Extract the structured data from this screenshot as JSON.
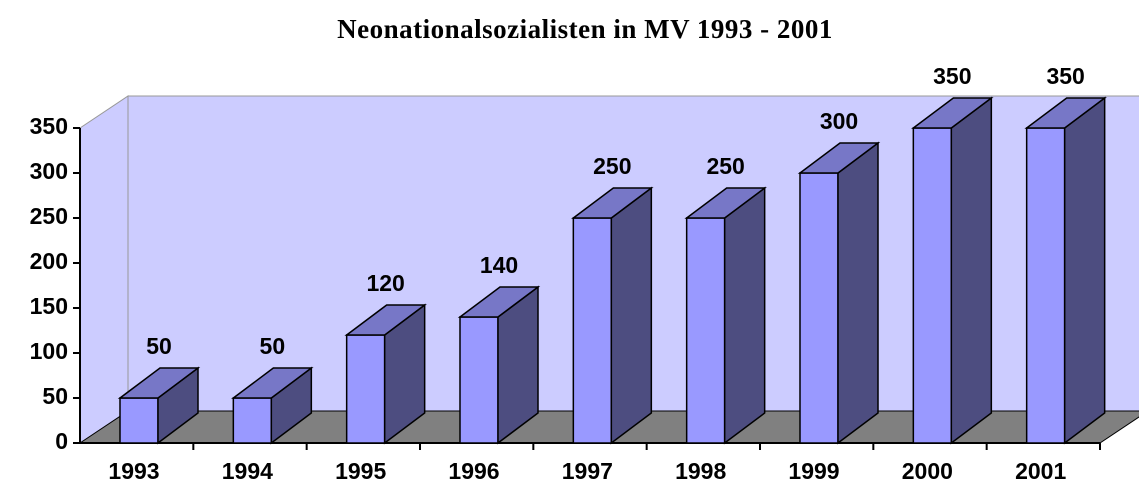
{
  "chart_data": {
    "type": "bar3d",
    "title": "Neonationalsozialisten in MV 1993 - 2001",
    "categories": [
      "1993",
      "1994",
      "1995",
      "1996",
      "1997",
      "1998",
      "1999",
      "2000",
      "2001"
    ],
    "values": [
      50,
      50,
      120,
      140,
      250,
      250,
      300,
      350,
      350
    ],
    "color": "#9999ff",
    "ylim": [
      0,
      350
    ],
    "yticks": [
      0,
      50,
      100,
      150,
      200,
      250,
      300,
      350
    ]
  }
}
